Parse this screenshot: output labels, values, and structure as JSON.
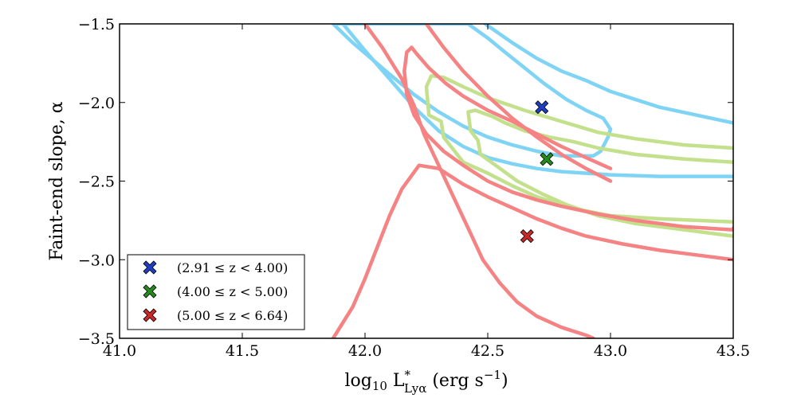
{
  "chart_data": {
    "type": "line",
    "title": "",
    "xlabel": "log10 L*Lyα (erg s−1)",
    "xlabel_parts": {
      "log": "log",
      "sub10": "10",
      "L": " L",
      "star": "*",
      "sub_lya": "Lyα",
      "units": " (erg s",
      "exp": "−1",
      "close": ")"
    },
    "ylabel": "Faint-end slope, α",
    "xlim": [
      41.0,
      43.5
    ],
    "ylim": [
      -3.5,
      -1.5
    ],
    "xticks": [
      41.0,
      41.5,
      42.0,
      42.5,
      43.0,
      43.5
    ],
    "xtick_labels": [
      "41.0",
      "41.5",
      "42.0",
      "42.5",
      "43.0",
      "43.5"
    ],
    "yticks": [
      -3.5,
      -3.0,
      -2.5,
      -2.0,
      -1.5
    ],
    "ytick_labels": [
      "−3.5",
      "−3.0",
      "−2.5",
      "−2.0",
      "−1.5"
    ],
    "grid": false,
    "legend_position": "lower-left",
    "series": [
      {
        "name": "(2.91 ≤ z < 4.00)",
        "marker_color": "#1e3fbf",
        "contour_color": "#7fd4f5",
        "best_fit": {
          "x": 42.72,
          "y": -2.03
        },
        "contours": [
          {
            "level": "inner",
            "closed": true,
            "points": [
              [
                41.87,
                -1.5
              ],
              [
                41.95,
                -1.62
              ],
              [
                42.1,
                -1.82
              ],
              [
                42.2,
                -1.95
              ],
              [
                42.3,
                -2.06
              ],
              [
                42.4,
                -2.15
              ],
              [
                42.5,
                -2.22
              ],
              [
                42.6,
                -2.27
              ],
              [
                42.7,
                -2.31
              ],
              [
                42.8,
                -2.34
              ],
              [
                42.93,
                -2.34
              ],
              [
                42.96,
                -2.31
              ],
              [
                42.99,
                -2.22
              ],
              [
                43.0,
                -2.17
              ],
              [
                42.97,
                -2.1
              ],
              [
                42.9,
                -2.05
              ],
              [
                42.82,
                -1.98
              ],
              [
                42.73,
                -1.88
              ],
              [
                42.65,
                -1.78
              ],
              [
                42.57,
                -1.68
              ],
              [
                42.5,
                -1.59
              ],
              [
                42.42,
                -1.5
              ]
            ]
          },
          {
            "level": "outer-lower",
            "closed": false,
            "points": [
              [
                41.91,
                -1.5
              ],
              [
                42.0,
                -1.67
              ],
              [
                42.1,
                -1.85
              ],
              [
                42.2,
                -2.03
              ],
              [
                42.3,
                -2.18
              ],
              [
                42.4,
                -2.28
              ],
              [
                42.5,
                -2.35
              ],
              [
                42.6,
                -2.39
              ],
              [
                42.7,
                -2.42
              ],
              [
                42.8,
                -2.44
              ],
              [
                43.0,
                -2.46
              ],
              [
                43.2,
                -2.47
              ],
              [
                43.5,
                -2.47
              ]
            ]
          },
          {
            "level": "outer-upper",
            "closed": false,
            "points": [
              [
                42.49,
                -1.5
              ],
              [
                42.6,
                -1.62
              ],
              [
                42.7,
                -1.72
              ],
              [
                42.8,
                -1.8
              ],
              [
                42.9,
                -1.86
              ],
              [
                43.0,
                -1.93
              ],
              [
                43.1,
                -1.98
              ],
              [
                43.2,
                -2.03
              ],
              [
                43.35,
                -2.08
              ],
              [
                43.5,
                -2.13
              ]
            ]
          }
        ]
      },
      {
        "name": "(4.00 ≤ z < 5.00)",
        "marker_color": "#228b1a",
        "contour_color": "#c3e08c",
        "best_fit": {
          "x": 42.74,
          "y": -2.36
        },
        "contours": [
          {
            "level": "inner",
            "closed": false,
            "points": [
              [
                43.5,
                -2.29
              ],
              [
                43.3,
                -2.27
              ],
              [
                43.1,
                -2.23
              ],
              [
                42.95,
                -2.19
              ],
              [
                42.8,
                -2.12
              ],
              [
                42.65,
                -2.05
              ],
              [
                42.5,
                -1.97
              ],
              [
                42.4,
                -1.9
              ],
              [
                42.32,
                -1.84
              ],
              [
                42.27,
                -1.83
              ],
              [
                42.25,
                -1.9
              ],
              [
                42.26,
                -2.08
              ],
              [
                42.31,
                -2.12
              ],
              [
                42.32,
                -2.22
              ],
              [
                42.4,
                -2.38
              ],
              [
                42.5,
                -2.45
              ],
              [
                42.6,
                -2.53
              ],
              [
                42.7,
                -2.6
              ],
              [
                42.8,
                -2.65
              ],
              [
                42.9,
                -2.69
              ],
              [
                43.0,
                -2.72
              ],
              [
                43.2,
                -2.74
              ],
              [
                43.5,
                -2.76
              ]
            ]
          },
          {
            "level": "outer",
            "closed": false,
            "points": [
              [
                43.5,
                -2.38
              ],
              [
                43.3,
                -2.36
              ],
              [
                43.1,
                -2.33
              ],
              [
                42.95,
                -2.29
              ],
              [
                42.85,
                -2.25
              ],
              [
                42.75,
                -2.22
              ],
              [
                42.65,
                -2.18
              ],
              [
                42.57,
                -2.13
              ],
              [
                42.52,
                -2.09
              ],
              [
                42.45,
                -2.05
              ],
              [
                42.42,
                -2.06
              ],
              [
                42.43,
                -2.18
              ],
              [
                42.46,
                -2.24
              ],
              [
                42.47,
                -2.33
              ],
              [
                42.55,
                -2.42
              ],
              [
                42.62,
                -2.5
              ],
              [
                42.72,
                -2.58
              ],
              [
                42.82,
                -2.65
              ],
              [
                42.95,
                -2.72
              ],
              [
                43.1,
                -2.77
              ],
              [
                43.25,
                -2.8
              ],
              [
                43.5,
                -2.85
              ]
            ]
          }
        ]
      },
      {
        "name": "(5.00 ≤ z < 6.64)",
        "marker_color": "#c8282a",
        "contour_color": "#f58383",
        "best_fit": {
          "x": 42.66,
          "y": -2.85
        },
        "contours": [
          {
            "level": "inner",
            "closed": false,
            "points": [
              [
                42.19,
                -1.65
              ],
              [
                42.17,
                -1.68
              ],
              [
                42.16,
                -1.8
              ],
              [
                42.17,
                -1.95
              ],
              [
                42.2,
                -2.08
              ],
              [
                42.25,
                -2.2
              ],
              [
                42.32,
                -2.31
              ],
              [
                42.4,
                -2.4
              ],
              [
                42.5,
                -2.5
              ],
              [
                42.6,
                -2.57
              ],
              [
                42.7,
                -2.62
              ],
              [
                42.8,
                -2.66
              ],
              [
                42.95,
                -2.71
              ],
              [
                43.1,
                -2.75
              ],
              [
                43.3,
                -2.79
              ],
              [
                43.5,
                -2.81
              ],
              [
                43.5,
                -2.8
              ]
            ]
          },
          {
            "level": "inner-top",
            "closed": false,
            "points": [
              [
                42.19,
                -1.65
              ],
              [
                42.21,
                -1.69
              ],
              [
                42.26,
                -1.78
              ],
              [
                42.33,
                -1.88
              ],
              [
                42.4,
                -1.96
              ],
              [
                42.5,
                -2.05
              ],
              [
                42.6,
                -2.12
              ],
              [
                42.7,
                -2.2
              ],
              [
                42.8,
                -2.28
              ],
              [
                42.9,
                -2.35
              ],
              [
                43.0,
                -2.42
              ]
            ]
          },
          {
            "level": "outer-left",
            "closed": false,
            "points": [
              [
                42.0,
                -1.5
              ],
              [
                42.07,
                -1.65
              ],
              [
                42.15,
                -1.85
              ],
              [
                42.2,
                -2.02
              ],
              [
                42.24,
                -2.2
              ],
              [
                42.3,
                -2.4
              ],
              [
                42.36,
                -2.6
              ],
              [
                42.42,
                -2.8
              ],
              [
                42.48,
                -3.0
              ],
              [
                42.55,
                -3.15
              ],
              [
                42.62,
                -3.27
              ],
              [
                42.7,
                -3.36
              ],
              [
                42.8,
                -3.43
              ],
              [
                42.9,
                -3.48
              ],
              [
                42.93,
                -3.5
              ]
            ]
          },
          {
            "level": "outer-right",
            "closed": false,
            "points": [
              [
                42.25,
                -1.5
              ],
              [
                42.32,
                -1.65
              ],
              [
                42.4,
                -1.8
              ],
              [
                42.5,
                -1.96
              ],
              [
                42.6,
                -2.1
              ],
              [
                42.7,
                -2.22
              ],
              [
                42.8,
                -2.33
              ],
              [
                42.9,
                -2.42
              ],
              [
                43.0,
                -2.5
              ]
            ]
          },
          {
            "level": "outer-bottom",
            "closed": false,
            "points": [
              [
                41.87,
                -3.5
              ],
              [
                41.95,
                -3.3
              ],
              [
                42.0,
                -3.12
              ],
              [
                42.05,
                -2.92
              ],
              [
                42.1,
                -2.72
              ],
              [
                42.15,
                -2.55
              ],
              [
                42.22,
                -2.4
              ],
              [
                42.3,
                -2.42
              ],
              [
                42.4,
                -2.52
              ],
              [
                42.5,
                -2.6
              ],
              [
                42.6,
                -2.67
              ],
              [
                42.7,
                -2.74
              ],
              [
                42.8,
                -2.8
              ],
              [
                42.9,
                -2.85
              ],
              [
                43.05,
                -2.9
              ],
              [
                43.2,
                -2.94
              ],
              [
                43.35,
                -2.97
              ],
              [
                43.5,
                -3.0
              ]
            ]
          }
        ]
      }
    ]
  }
}
